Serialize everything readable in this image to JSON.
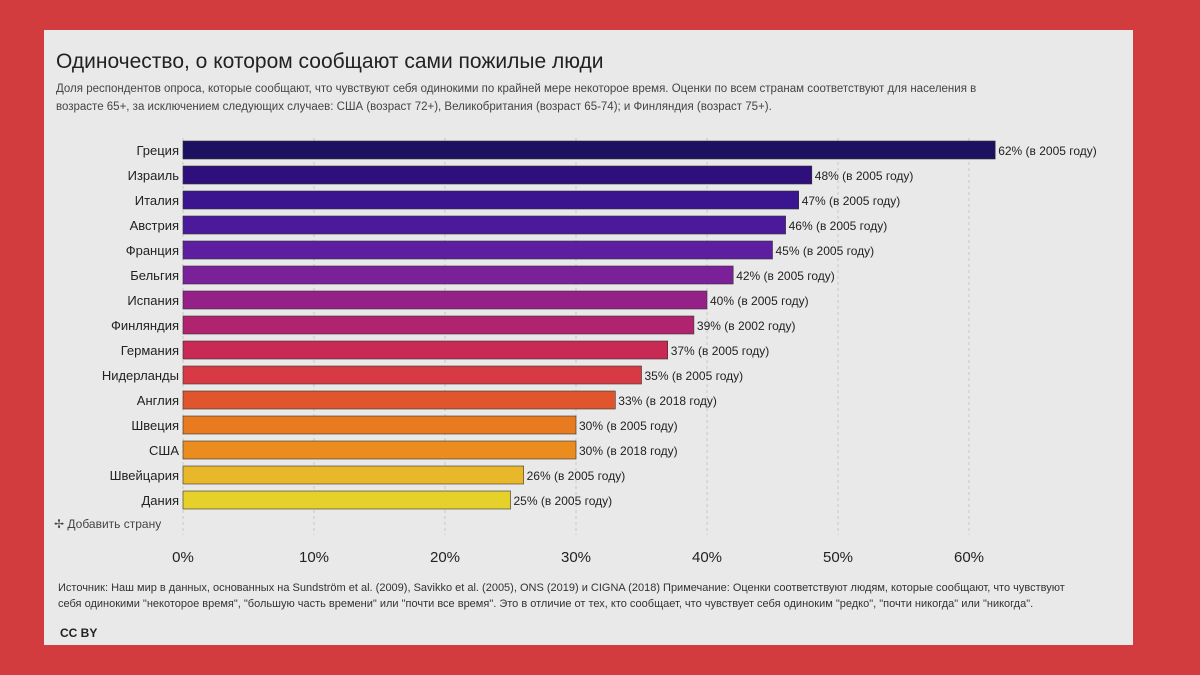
{
  "title": "Одиночество, о котором сообщают сами пожилые люди",
  "subtitle": "Доля респондентов опроса, которые сообщают, что чувствуют себя одинокими по крайней мере некоторое время. Оценки по всем странам соответствуют для населения в возрасте 65+, за исключением следующих случаев: США (возраст 72+), Великобритания (возраст 65-74); и Финляндия (возраст 75+).",
  "add_country": "Добавить страну",
  "footer": "Источник: Наш мир в данных, основанных на Sundström et al. (2009), Savikko et al. (2005), ONS (2019) и CIGNA (2018) Примечание: Оценки соответствуют людям, которые сообщают, что чувствуют себя одинокими \"некоторое время\", \"большую часть времени\" или \"почти все время\". Это в отличие от тех, кто сообщает, что чувствует себя одиноким \"редко\", \"почти никогда\" или \"никогда\".",
  "license": "CC BY",
  "chart_data": {
    "type": "bar",
    "orientation": "horizontal",
    "categories": [
      "Греция",
      "Израиль",
      "Италия",
      "Австрия",
      "Франция",
      "Бельгия",
      "Испания",
      "Финляндия",
      "Германия",
      "Нидерланды",
      "Англия",
      "Швеция",
      "США",
      "Швейцария",
      "Дания"
    ],
    "values": [
      62,
      48,
      47,
      46,
      45,
      42,
      40,
      39,
      37,
      35,
      33,
      30,
      30,
      26,
      25
    ],
    "labels": [
      "62% (в 2005 году)",
      "48% (в 2005 году)",
      "47% (в 2005 году)",
      "46% (в 2005 году)",
      "45% (в 2005 году)",
      "42% (в 2005 году)",
      "40% (в 2005 году)",
      "39% (в 2002 году)",
      "37% (в 2005 году)",
      "35% (в 2005 году)",
      "33% (в 2018 году)",
      "30% (в 2005 году)",
      "30% (в 2018 году)",
      "26% (в 2005 году)",
      "25% (в 2005 году)"
    ],
    "colors": [
      "#1b1160",
      "#2e0f7c",
      "#3b1490",
      "#4b1a9b",
      "#5d1ea0",
      "#7a2098",
      "#952088",
      "#b0246f",
      "#c82a55",
      "#d83a45",
      "#e0542e",
      "#e87a20",
      "#eb8c1f",
      "#e8b82a",
      "#e6d02a"
    ],
    "xticks": [
      "0%",
      "10%",
      "20%",
      "30%",
      "40%",
      "50%",
      "60%"
    ],
    "xlim": [
      0,
      65
    ],
    "grid": true
  }
}
